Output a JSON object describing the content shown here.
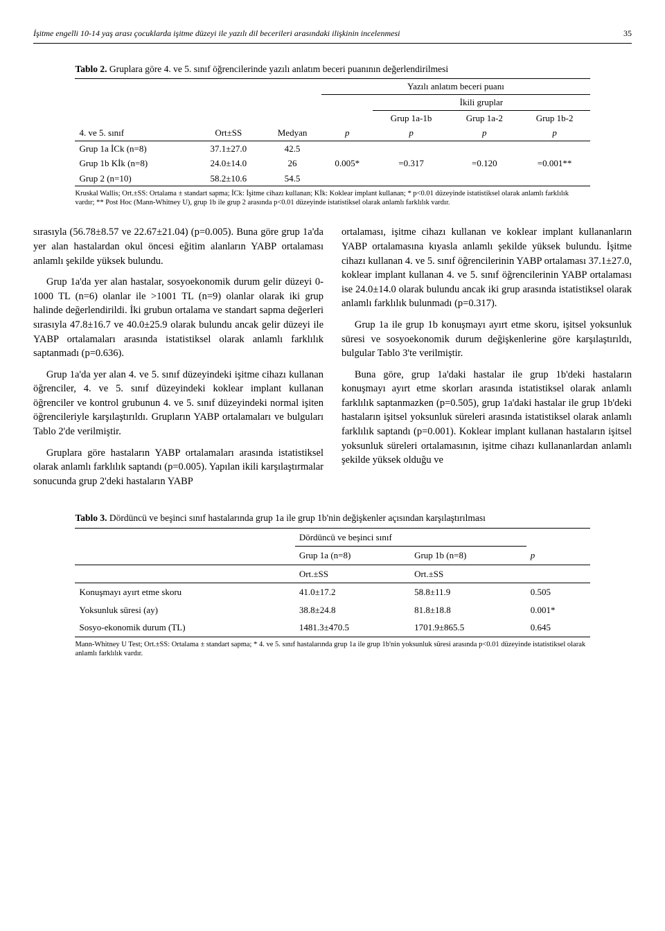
{
  "header": {
    "running_title": "İşitme engelli 10-14 yaş arası çocuklarda işitme düzeyi ile yazılı dil becerileri arasındaki ilişkinin incelenmesi",
    "page_number": "35"
  },
  "table2": {
    "type": "table",
    "caption_bold": "Tablo 2.",
    "caption_rest": " Gruplara göre 4. ve 5. sınıf öğrencilerinde yazılı anlatım beceri puanının değerlendirilmesi",
    "super_header": "Yazılı anlatım beceri puanı",
    "ikili": "İkili gruplar",
    "col_headers": {
      "c0": "4. ve 5. sınıf",
      "c1": "Ort±SS",
      "c2": "Medyan",
      "c3": "p",
      "c4": "Grup 1a-1b",
      "c5": "Grup 1a-2",
      "c6": "Grup 1b-2",
      "c4p": "p",
      "c5p": "p",
      "c6p": "p"
    },
    "rows": [
      {
        "r0": "Grup 1a İCk (n=8)",
        "r1": "37.1±27.0",
        "r2": "42.5",
        "r3": "",
        "r4": "",
        "r5": "",
        "r6": ""
      },
      {
        "r0": "Grup 1b Kİk (n=8)",
        "r1": "24.0±14.0",
        "r2": "26",
        "r3": "0.005*",
        "r4": "=0.317",
        "r5": "=0.120",
        "r6": "=0.001**"
      },
      {
        "r0": "Grup 2 (n=10)",
        "r1": "58.2±10.6",
        "r2": "54.5",
        "r3": "",
        "r4": "",
        "r5": "",
        "r6": ""
      }
    ],
    "footnote": "Kruskal Wallis; Ort.±SS: Ortalama ± standart sapma; İCk: İşitme cihazı kullanan; Kİk: Koklear implant kullanan; * p<0.01 düzeyinde istatistiksel olarak anlamlı farklılık vardır; ** Post Hoc (Mann-Whitney U), grup 1b ile grup 2 arasında p<0.01 düzeyinde istatistiksel olarak anlamlı farklılık vardır."
  },
  "body": {
    "left": [
      "sırasıyla (56.78±8.57 ve 22.67±21.04) (p=0.005). Buna göre grup 1a'da yer alan hastalardan okul öncesi eğitim alanların YABP ortalaması anlamlı şekilde yüksek bulundu.",
      "Grup 1a'da yer alan hastalar, sosyoekonomik durum gelir düzeyi 0-1000 TL (n=6) olanlar ile >1001 TL (n=9) olanlar olarak iki grup halinde değerlendirildi. İki grubun ortalama ve standart sapma değerleri sırasıyla 47.8±16.7 ve 40.0±25.9 olarak bulundu ancak gelir düzeyi ile YABP ortalamaları arasında istatistiksel olarak anlamlı farklılık saptanmadı (p=0.636).",
      "Grup 1a'da yer alan 4. ve 5. sınıf düzeyindeki işitme cihazı kullanan öğrenciler, 4. ve 5. sınıf düzeyindeki koklear implant kullanan öğrenciler ve kontrol grubunun 4. ve 5. sınıf düzeyindeki normal işiten öğrencileriyle karşılaştırıldı. Grupların YABP ortalamaları ve bulguları Tablo 2'de verilmiştir.",
      "Gruplara göre hastaların YABP ortalamaları arasında istatistiksel olarak anlamlı farklılık saptandı (p=0.005). Yapılan ikili karşılaştırmalar sonucunda grup 2'deki hastaların YABP"
    ],
    "right": [
      "ortalaması, işitme cihazı kullanan ve koklear implant kullananların YABP ortalamasına kıyasla anlamlı şekilde yüksek bulundu. İşitme cihazı kullanan 4. ve 5. sınıf öğrencilerinin YABP ortalaması 37.1±27.0, koklear implant kullanan 4. ve 5. sınıf öğrencilerinin YABP ortalaması ise 24.0±14.0 olarak bulundu ancak iki grup arasında istatistiksel olarak anlamlı farklılık bulunmadı (p=0.317).",
      "Grup 1a ile grup 1b konuşmayı ayırt etme skoru, işitsel yoksunluk süresi ve sosyoekonomik durum değişkenlerine göre karşılaştırıldı, bulgular Tablo 3'te verilmiştir.",
      "Buna göre, grup 1a'daki hastalar ile grup 1b'deki hastaların konuşmayı ayırt etme skorları arasında istatistiksel olarak anlamlı farklılık saptanmazken (p=0.505), grup 1a'daki hastalar ile grup 1b'deki hastaların işitsel yoksunluk süreleri arasında istatistiksel olarak anlamlı farklılık saptandı (p=0.001). Koklear implant kullanan hastaların işitsel yoksunluk süreleri ortalamasının, işitme cihazı kullananlardan anlamlı şekilde yüksek olduğu ve"
    ]
  },
  "table3": {
    "type": "table",
    "caption_bold": "Tablo 3.",
    "caption_rest": " Dördüncü ve beşinci sınıf hastalarında grup 1a ile grup 1b'nin değişkenler açısından karşılaştırılması",
    "super_header": "Dördüncü ve beşinci sınıf",
    "col_headers": {
      "c0": "",
      "c1": "Grup 1a (n=8)",
      "c2": "Grup 1b (n=8)",
      "c3": "p",
      "sub": "Ort.±SS"
    },
    "rows": [
      {
        "r0": "Konuşmayı ayırt etme skoru",
        "r1": "41.0±17.2",
        "r2": "58.8±11.9",
        "r3": "0.505"
      },
      {
        "r0": "Yoksunluk süresi (ay)",
        "r1": "38.8±24.8",
        "r2": "81.8±18.8",
        "r3": "0.001*"
      },
      {
        "r0": "Sosyo-ekonomik durum (TL)",
        "r1": "1481.3±470.5",
        "r2": "1701.9±865.5",
        "r3": "0.645"
      }
    ],
    "footnote": "Mann-Whitney U Test; Ort.±SS: Ortalama ± standart sapma; * 4. ve 5. sınıf hastalarında grup 1a ile grup 1b'nin yoksunluk süresi arasında p<0.01 düzeyinde istatistiksel olarak anlamlı farklılık vardır."
  }
}
